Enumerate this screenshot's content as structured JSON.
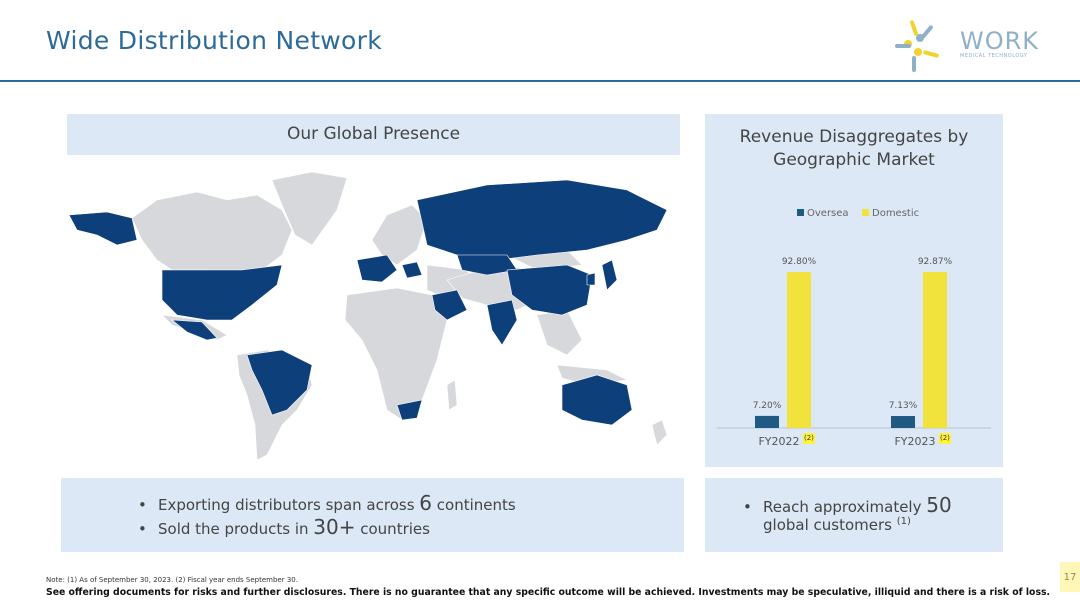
{
  "header": {
    "title": "Wide Distribution Network",
    "logo_word": "WORK",
    "logo_sub": "MEDICAL TECHNOLOGY"
  },
  "map_panel": {
    "title": "Our Global Presence"
  },
  "revenue_panel": {
    "title_line1": "Revenue Disaggregates by",
    "title_line2": "Geographic Market"
  },
  "chart_data": {
    "type": "bar",
    "categories": [
      "FY2022",
      "FY2023"
    ],
    "category_footnotes": [
      "(2)",
      "(2)"
    ],
    "series": [
      {
        "name": "Oversea",
        "values": [
          7.2,
          7.13
        ],
        "labels": [
          "7.20%",
          "7.13%"
        ],
        "color": "#1f5a85"
      },
      {
        "name": "Domestic",
        "values": [
          92.8,
          92.87
        ],
        "labels": [
          "92.80%",
          "92.87%"
        ],
        "color": "#f2e33c"
      }
    ],
    "ylim": [
      0,
      100
    ],
    "grid": false,
    "legend": "top"
  },
  "bullets_left": [
    {
      "pre": "Exporting distributors span across ",
      "big": "6",
      "post": " continents"
    },
    {
      "pre": "Sold the products in ",
      "big": "30+",
      "post": " countries"
    }
  ],
  "bullets_right": {
    "line1_pre": "Reach approximately ",
    "line1_big": "50",
    "line2": "global customers ",
    "line2_sup": "(1)"
  },
  "footer": {
    "note": "Note: (1) As of September 30, 2023. (2) Fiscal year ends September 30.",
    "disclaimer": "See offering documents for risks and further disclosures. There is no guarantee that any specific outcome will be achieved. Investments may be speculative, illiquid and there is a risk of loss.",
    "page_number": "17"
  },
  "colors": {
    "accent": "#2e6a98",
    "highlight_country": "#0d3f7a",
    "other_country": "#d6d8db",
    "panel_bg": "#dce8f5"
  }
}
